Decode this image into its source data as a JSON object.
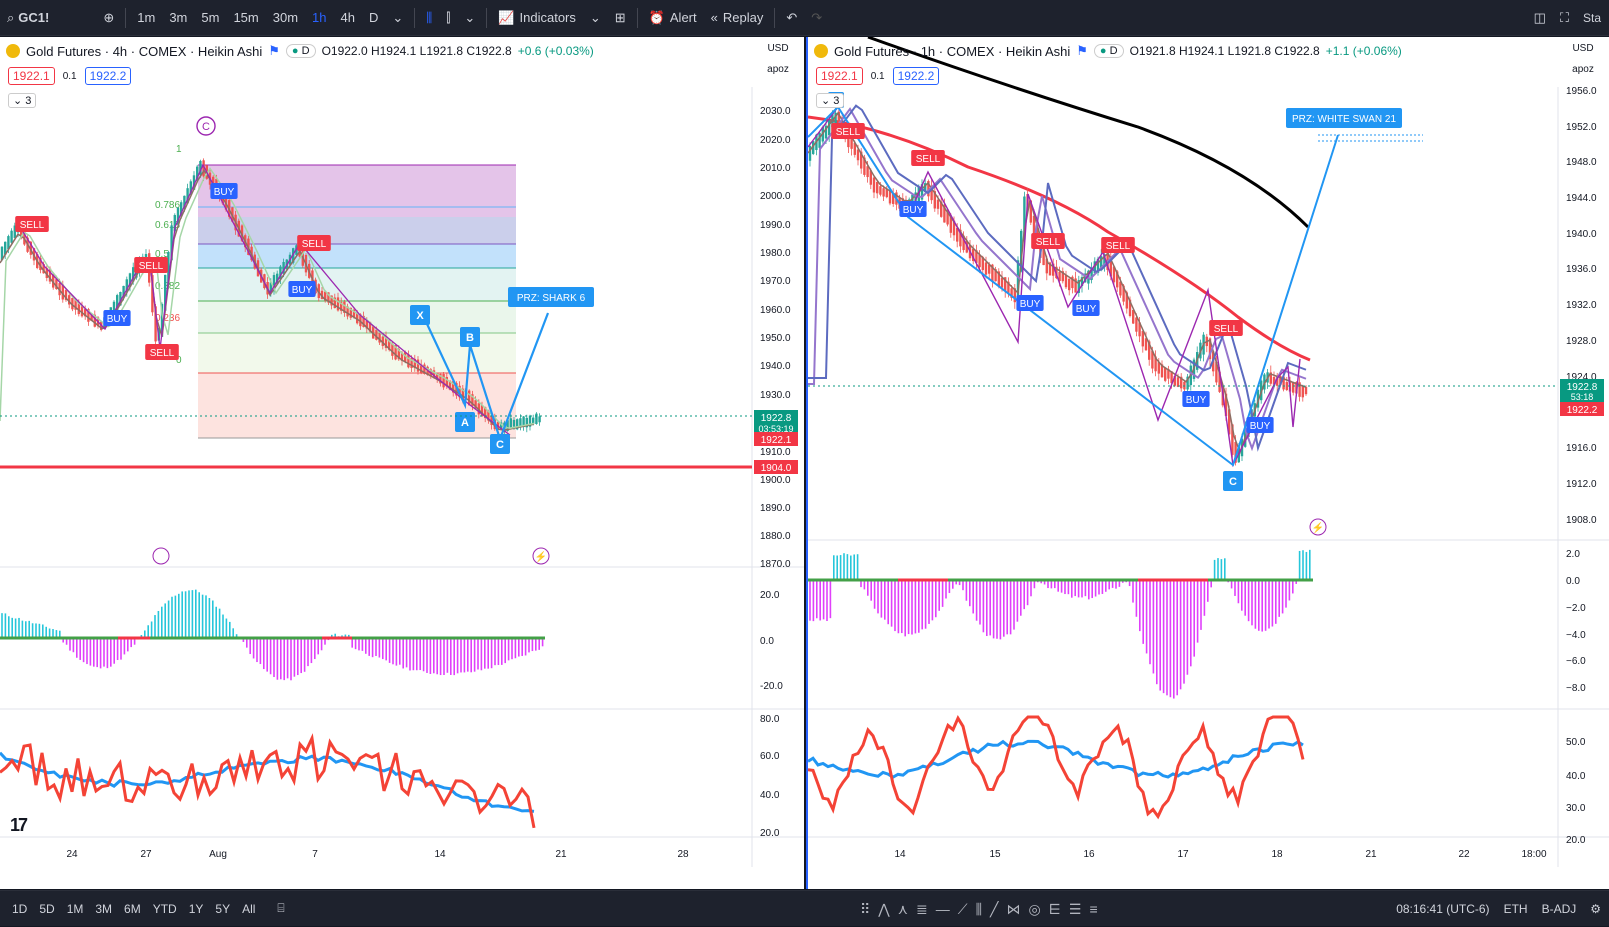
{
  "toolbar": {
    "symbol": "GC1!",
    "intervals": [
      "1m",
      "3m",
      "5m",
      "15m",
      "30m",
      "1h",
      "4h",
      "D"
    ],
    "active_interval": "1h",
    "indicators": "Indicators",
    "alert": "Alert",
    "replay": "Replay",
    "right_label": "Sta"
  },
  "left": {
    "title": "Gold Futures · 4h · COMEX · Heikin Ashi",
    "d_pill": "D",
    "ohlc": "O1922.0 H1924.1 L1921.8 C1922.8",
    "change": "+0.6 (+0.03%)",
    "sell_price": "1922.1",
    "spread": "0.1",
    "buy_price": "1922.2",
    "collapse_count": "3",
    "currency": "USD",
    "mode": "apoz",
    "price_ticks": [
      "2030.0",
      "2020.0",
      "2010.0",
      "2000.0",
      "1990.0",
      "1980.0",
      "1970.0",
      "1960.0",
      "1950.0",
      "1940.0",
      "1930.0",
      "1910.0",
      "1900.0",
      "1890.0",
      "1880.0",
      "1870.0"
    ],
    "price_tags": [
      {
        "label": "1922.8",
        "sub": "03:53:19",
        "color": "#089981"
      },
      {
        "label": "1922.1",
        "sub": "",
        "color": "#f23645"
      },
      {
        "label": "1904.0",
        "sub": "",
        "color": "#f23645"
      }
    ],
    "macd_ticks": [
      "20.0",
      "0.0",
      "-20.0"
    ],
    "rsi_ticks": [
      "80.0",
      "60.0",
      "40.0",
      "20.0"
    ],
    "time_ticks": [
      "24",
      "27",
      "Aug",
      "7",
      "14",
      "21",
      "28"
    ],
    "fib_labels": [
      "1",
      "0.786",
      "0.618",
      "0.5",
      "0.382",
      "0.236",
      "0"
    ],
    "markers": [
      {
        "text": "SELL",
        "kind": "sell"
      },
      {
        "text": "BUY",
        "kind": "buy"
      },
      {
        "text": "SELL",
        "kind": "sell"
      },
      {
        "text": "BUY",
        "kind": "buy"
      },
      {
        "text": "SELL",
        "kind": "sell"
      },
      {
        "text": "SELL",
        "kind": "sell"
      },
      {
        "text": "BUY",
        "kind": "buy"
      }
    ],
    "pattern_points": [
      "X",
      "A",
      "B",
      "C"
    ],
    "prz_label": "PRZ: SHARK 6",
    "wave_label": "C"
  },
  "right": {
    "title": "Gold Futures · 1h · COMEX · Heikin Ashi",
    "d_pill": "D",
    "ohlc": "O1921.8 H1924.1 L1921.8 C1922.8",
    "change": "+1.1 (+0.06%)",
    "sell_price": "1922.1",
    "spread": "0.1",
    "buy_price": "1922.2",
    "collapse_count": "3",
    "currency": "USD",
    "mode": "apoz",
    "price_ticks": [
      "1956.0",
      "1952.0",
      "1948.0",
      "1944.0",
      "1940.0",
      "1936.0",
      "1932.0",
      "1928.0",
      "1924.0",
      "1916.0",
      "1912.0",
      "1908.0"
    ],
    "price_tags": [
      {
        "label": "1922.8",
        "sub": "53:18",
        "color": "#089981"
      },
      {
        "label": "1922.2",
        "sub": "",
        "color": "#f23645"
      }
    ],
    "macd_ticks": [
      "2.0",
      "0.0",
      "−2.0",
      "−4.0",
      "−6.0",
      "−8.0"
    ],
    "rsi_ticks": [
      "50.0",
      "40.0",
      "30.0",
      "20.0"
    ],
    "time_ticks": [
      "14",
      "15",
      "16",
      "17",
      "18",
      "21",
      "22",
      "18:00"
    ],
    "markers": [
      {
        "text": "SELL",
        "kind": "sell"
      },
      {
        "text": "SELL",
        "kind": "sell"
      },
      {
        "text": "BUY",
        "kind": "buy"
      },
      {
        "text": "SELL",
        "kind": "sell"
      },
      {
        "text": "SELL",
        "kind": "sell"
      },
      {
        "text": "BUY",
        "kind": "buy"
      },
      {
        "text": "BUY",
        "kind": "buy"
      },
      {
        "text": "SELL",
        "kind": "sell"
      },
      {
        "text": "BUY",
        "kind": "buy"
      },
      {
        "text": "BUY",
        "kind": "buy"
      }
    ],
    "pattern_points": [
      "3",
      "C"
    ],
    "prz_label": "PRZ: WHITE SWAN 21"
  },
  "bottombar": {
    "ranges": [
      "1D",
      "5D",
      "1M",
      "3M",
      "6M",
      "YTD",
      "1Y",
      "5Y",
      "All"
    ],
    "time": "08:16:41 (UTC-6)",
    "session": "ETH",
    "adj": "B-ADJ"
  },
  "colors": {
    "sell": "#f23645",
    "buy": "#2962ff",
    "pattern": "#2196f3",
    "ma_purple": "#9c27b0",
    "ma_red": "#f23645",
    "macd_up": "#26c6da",
    "macd_down": "#e040fb",
    "rsi_blue": "#2196f3",
    "rsi_red": "#f44336"
  }
}
